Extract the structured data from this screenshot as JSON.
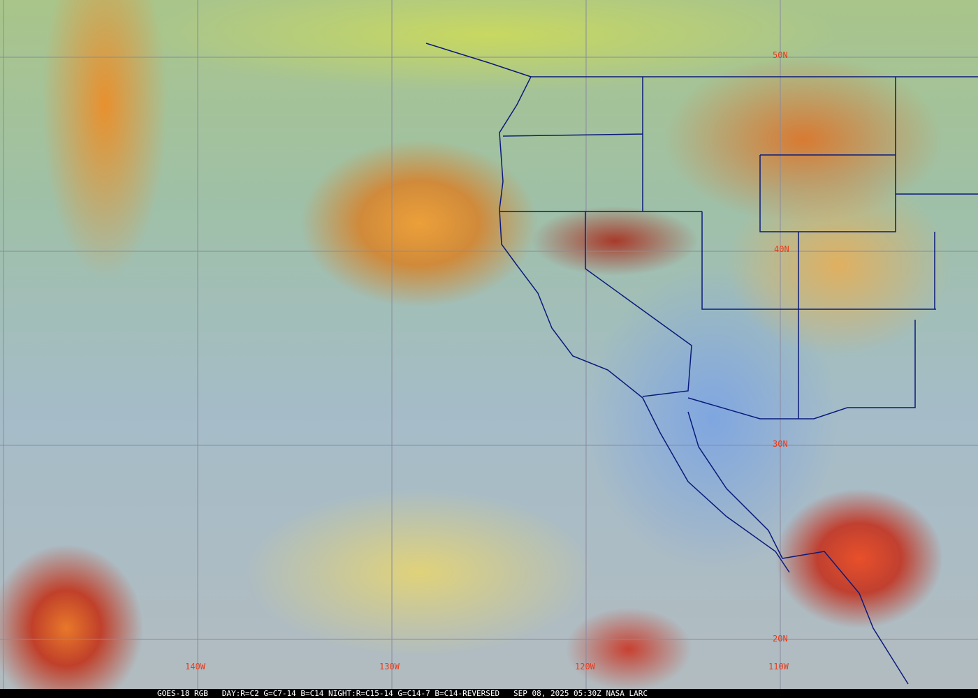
{
  "map": {
    "lat_labels": [
      "50N",
      "40N",
      "30N",
      "20N"
    ],
    "lon_labels": [
      "140W",
      "130W",
      "120W",
      "110W"
    ],
    "colors": {
      "label": "#e83a1a",
      "grid": "#8a8aa0",
      "borders": "#0a1a7a"
    }
  },
  "caption": {
    "satellite": "GOES-18 RGB",
    "recipe": "DAY:R=C2 G=C7-14 B=C14 NIGHT:R=C15-14 G=C14-7 B=C14-REVERSED",
    "timestamp": "SEP 08, 2025 05:30Z",
    "source": "NASA LARC"
  }
}
